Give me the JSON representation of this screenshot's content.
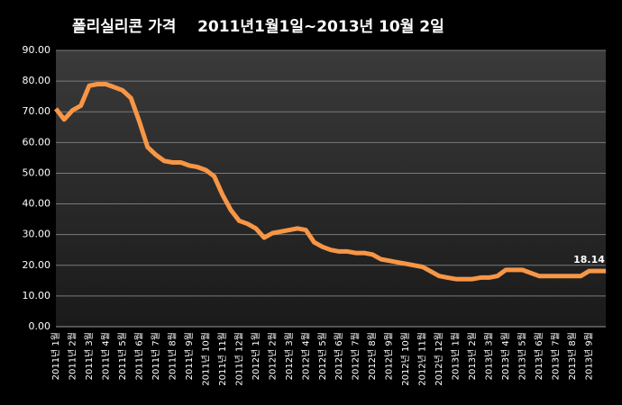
{
  "chart_data": {
    "type": "line",
    "title": "폴리실리콘 가격    2011년1월1일~2013년 10월 2일",
    "categories": [
      "2011년 1월",
      null,
      "2011년 2월",
      null,
      "2011년 3월",
      null,
      "2011년 4월",
      null,
      "2011년 5월",
      null,
      "2011년 6월",
      null,
      "2011년 7월",
      null,
      "2011년 8월",
      null,
      "2011년 9월",
      null,
      "2011년 10월",
      null,
      "2011년 11월",
      null,
      "2011년 12월",
      null,
      "2012년 1월",
      null,
      "2012년 2월",
      null,
      "2012년 3월",
      null,
      "2012년 4월",
      null,
      "2012년 5월",
      null,
      "2012년 6월",
      null,
      "2012년 7월",
      null,
      "2012년 8월",
      null,
      "2012년 9월",
      null,
      "2012년 10월",
      null,
      "2012년 11월",
      null,
      "2012년 12월",
      null,
      "2013년 1월",
      null,
      "2013년 2월",
      null,
      "2013년 3월",
      null,
      "2013년 4월",
      null,
      "2013년 5월",
      null,
      "2013년 6월",
      null,
      "2013년 7월",
      null,
      "2013년 8월",
      null,
      "2013년 9월",
      null,
      null
    ],
    "series": [
      {
        "name": "폴리실리콘 가격",
        "color": "#f79646",
        "values": [
          71,
          67.5,
          70.5,
          72,
          78.5,
          79,
          79,
          78,
          77,
          74.5,
          67,
          58.5,
          56,
          54,
          53.5,
          53.5,
          52.5,
          52,
          51,
          49,
          43,
          38,
          34.5,
          33.5,
          32,
          29,
          30.5,
          31,
          31.5,
          32,
          31.5,
          27.5,
          26,
          25,
          24.5,
          24.5,
          24,
          24,
          23.5,
          22,
          21.5,
          21,
          20.5,
          20,
          19.5,
          18,
          16.5,
          16,
          15.5,
          15.5,
          15.5,
          16,
          16,
          16.5,
          18.5,
          18.5,
          18.5,
          17.5,
          16.5,
          16.5,
          16.5,
          16.5,
          16.5,
          16.5,
          18.14,
          18.14,
          18.14
        ]
      }
    ],
    "label_points": [
      64
    ],
    "ylim": [
      0,
      90
    ],
    "yticks": [
      {
        "value": 0,
        "label": "0.00"
      },
      {
        "value": 10,
        "label": "10.00"
      },
      {
        "value": 20,
        "label": "20.00"
      },
      {
        "value": 30,
        "label": "30.00"
      },
      {
        "value": 40,
        "label": "40.00"
      },
      {
        "value": 50,
        "label": "50.00"
      },
      {
        "value": 60,
        "label": "60.00"
      },
      {
        "value": 70,
        "label": "70.00"
      },
      {
        "value": 80,
        "label": "80.00"
      },
      {
        "value": 90,
        "label": "90.00"
      }
    ],
    "grid": true
  }
}
